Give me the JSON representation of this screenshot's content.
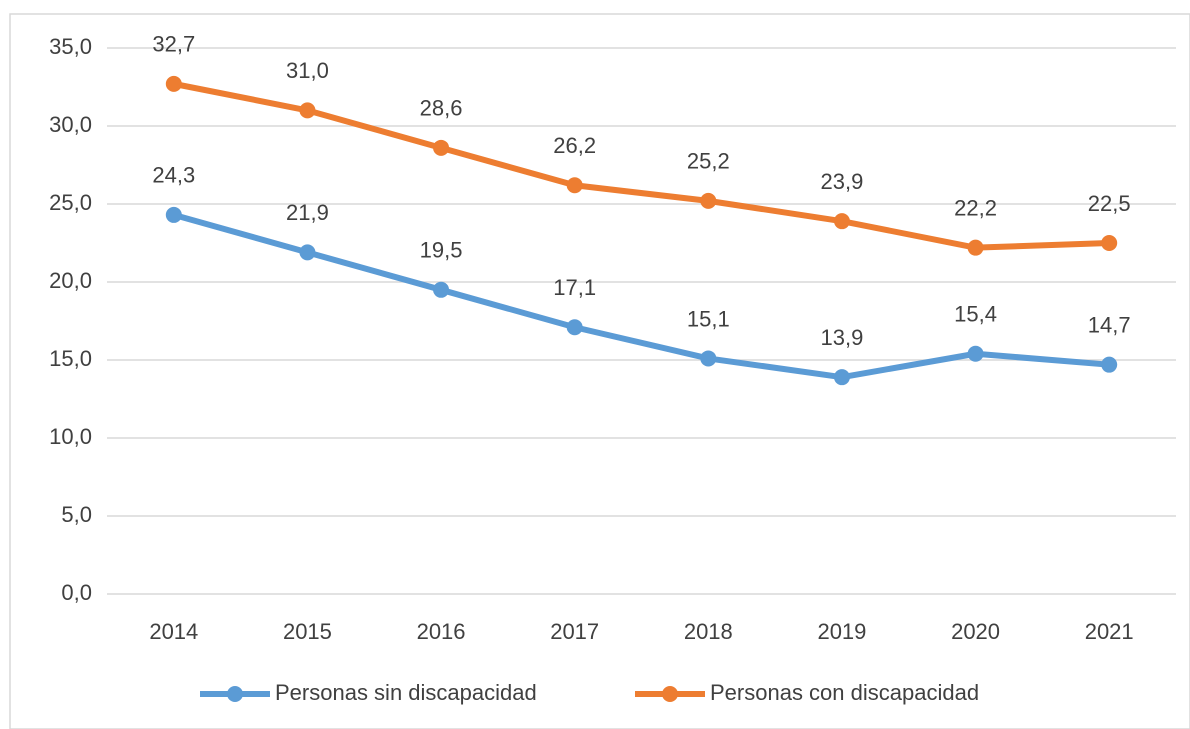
{
  "chart_data": {
    "type": "line",
    "categories": [
      "2014",
      "2015",
      "2016",
      "2017",
      "2018",
      "2019",
      "2020",
      "2021"
    ],
    "series": [
      {
        "name": "Personas sin discapacidad",
        "color": "#5b9bd5",
        "values": [
          24.3,
          21.9,
          19.5,
          17.1,
          15.1,
          13.9,
          15.4,
          14.7
        ],
        "value_labels": [
          "24,3",
          "21,9",
          "19,5",
          "17,1",
          "15,1",
          "13,9",
          "15,4",
          "14,7"
        ]
      },
      {
        "name": "Personas con discapacidad",
        "color": "#ed7d31",
        "values": [
          32.7,
          31.0,
          28.6,
          26.2,
          25.2,
          23.9,
          22.2,
          22.5
        ],
        "value_labels": [
          "32,7",
          "31,0",
          "28,6",
          "26,2",
          "25,2",
          "23,9",
          "22,2",
          "22,5"
        ]
      }
    ],
    "ylim": [
      0,
      35
    ],
    "yticks": [
      {
        "value": 0,
        "label": "0,0"
      },
      {
        "value": 5,
        "label": "5,0"
      },
      {
        "value": 10,
        "label": "10,0"
      },
      {
        "value": 15,
        "label": "15,0"
      },
      {
        "value": 20,
        "label": "20,0"
      },
      {
        "value": 25,
        "label": "25,0"
      },
      {
        "value": 30,
        "label": "30,0"
      },
      {
        "value": 35,
        "label": "35,0"
      }
    ],
    "grid": true,
    "legend": "bottom"
  }
}
